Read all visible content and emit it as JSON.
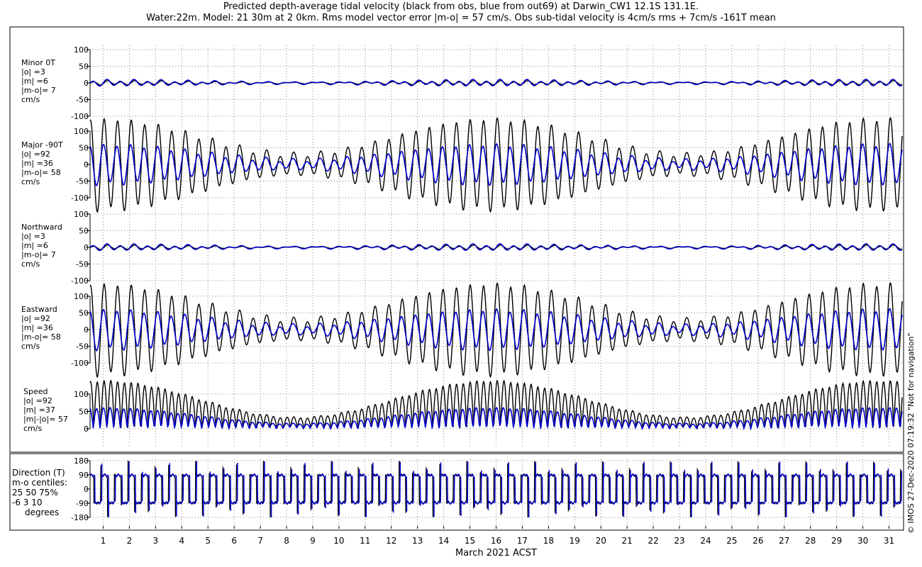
{
  "title_line1": "Predicted depth-average tidal velocity (black from obs, blue from out69) at Darwin_CW1 12.1S 131.1E.",
  "title_line2": "Water:22m. Model: 21 30m at 2 0km. Rms model vector error |m-o| = 57 cm/s. Obs sub-tidal velocity is 4cm/s rms + 7cm/s -161T mean",
  "xlabel": "March 2021 ACST",
  "credit": "© IMOS 27-Dec-2020 07:19:32   \"Not for navigation\"",
  "colors": {
    "obs": "#000000",
    "model": "#0000cc",
    "grid": "#888888"
  },
  "chart_data": {
    "type": "line",
    "x_ticks": [
      "1",
      "2",
      "3",
      "4",
      "5",
      "6",
      "7",
      "8",
      "9",
      "10",
      "11",
      "12",
      "13",
      "14",
      "15",
      "16",
      "17",
      "18",
      "19",
      "20",
      "21",
      "22",
      "23",
      "24",
      "25",
      "26",
      "27",
      "28",
      "29",
      "30",
      "31"
    ],
    "x_range_days": [
      0.5,
      31.5
    ],
    "series_legend": [
      "black from obs",
      "blue from out69"
    ],
    "panels": [
      {
        "key": "minor",
        "label_lines": [
          "Minor 0T",
          "|o| =3",
          "|m| =6",
          "|m-o|= 7",
          "cm/s"
        ],
        "ylim": [
          -100,
          100
        ],
        "yticks": [
          "100",
          "50",
          "0",
          "-50",
          "-100"
        ],
        "obs": {
          "semi": 5,
          "diurnal": 2
        },
        "model": {
          "semi": 8,
          "diurnal": 3
        }
      },
      {
        "key": "major",
        "label_lines": [
          "Major -90T",
          "|o| =92",
          "|m| =36",
          "|m-o|= 58",
          "cm/s"
        ],
        "ylim": [
          -100,
          100
        ],
        "yticks": [
          "100",
          "50",
          "0",
          "-50",
          "-100"
        ],
        "obs": {
          "semi": 135,
          "diurnal": 8
        },
        "model": {
          "semi": 58,
          "diurnal": 6
        }
      },
      {
        "key": "north",
        "label_lines": [
          "Northward",
          "|o| =3",
          "|m| =6",
          "|m-o|= 7",
          "cm/s"
        ],
        "ylim": [
          -100,
          100
        ],
        "yticks": [
          "100",
          "50",
          "0",
          "-50",
          "-100"
        ],
        "obs": {
          "semi": 5,
          "diurnal": 2
        },
        "model": {
          "semi": 8,
          "diurnal": 3
        }
      },
      {
        "key": "east",
        "label_lines": [
          "Eastward",
          "|o| =92",
          "|m| =36",
          "|m-o|= 58",
          "cm/s"
        ],
        "ylim": [
          -100,
          100
        ],
        "yticks": [
          "100",
          "50",
          "0",
          "-50",
          "-100"
        ],
        "obs": {
          "semi": 135,
          "diurnal": 8
        },
        "model": {
          "semi": 58,
          "diurnal": 6
        }
      },
      {
        "key": "speed",
        "label_lines": [
          "Speed",
          "|o| =92",
          "|m| =37",
          "|m|-|o|= 57",
          "cm/s"
        ],
        "ylim": [
          0,
          100
        ],
        "yticks": [
          "100",
          "50",
          "0"
        ],
        "obs": {
          "semi": 135,
          "diurnal": 8
        },
        "model": {
          "semi": 58,
          "diurnal": 6
        }
      }
    ],
    "direction_panel": {
      "label_lines": [
        "Direction (T)",
        "m-o centiles:",
        "25  50  75%",
        "-6   3  10",
        "degrees"
      ],
      "ylim": [
        -180,
        180
      ],
      "yticks": [
        "180",
        "90",
        "0",
        "-90",
        "-180"
      ],
      "flow_directions_deg": [
        90,
        -90
      ]
    },
    "spring_neap": {
      "spring_days": [
        1,
        16,
        31
      ],
      "neap_days": [
        8,
        23
      ],
      "neap_fraction": 0.22
    }
  }
}
